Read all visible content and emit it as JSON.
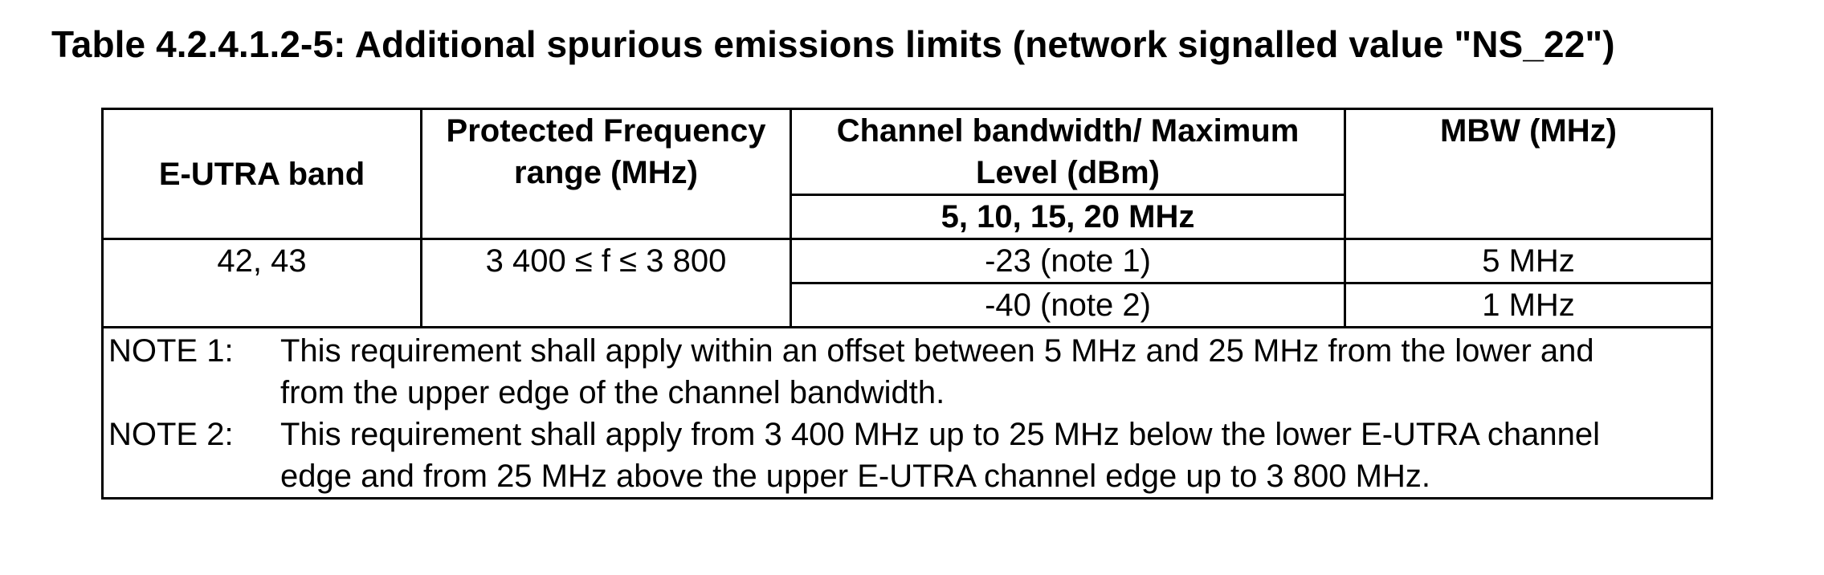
{
  "title": "Table 4.2.4.1.2-5: Additional spurious emissions limits (network signalled value \"NS_22\")",
  "table": {
    "headers": {
      "eutra_band": "E-UTRA band",
      "protected_freq": "Protected Frequency range (MHz)",
      "channel_bw": "Channel bandwidth/ Maximum Level (dBm)",
      "channel_bw_sub": "5, 10, 15, 20 MHz",
      "mbw": "MBW (MHz)"
    },
    "rows": [
      {
        "band": "42, 43",
        "freq_range": "3 400 ≤ f ≤ 3 800",
        "limits": [
          {
            "level": "-23 (note 1)",
            "mbw": "5 MHz"
          },
          {
            "level": "-40 (note 2)",
            "mbw": "1 MHz"
          }
        ]
      }
    ],
    "notes": [
      {
        "label": "NOTE 1:",
        "text": "This requirement shall apply within an offset between 5 MHz and 25 MHz from the lower and from the upper edge of the channel bandwidth."
      },
      {
        "label": "NOTE 2:",
        "text": "This requirement shall apply from 3 400 MHz up to 25 MHz below the lower E-UTRA channel edge and from 25 MHz above the upper E-UTRA channel edge up to 3 800 MHz."
      }
    ]
  }
}
